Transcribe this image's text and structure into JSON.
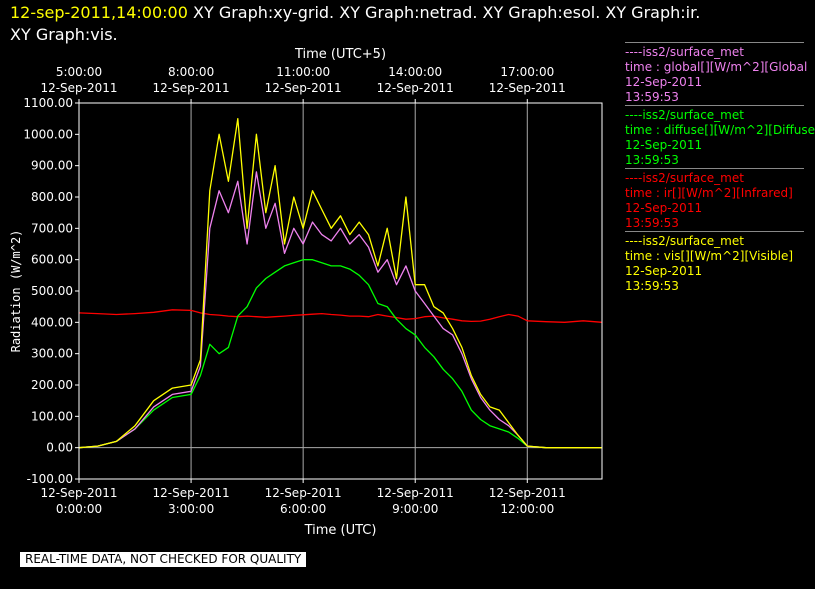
{
  "header": {
    "timestamp": "12-sep-2011,14:00:00",
    "graphs_line1": "XY Graph:xy-grid.  XY Graph:netrad.  XY Graph:esol.  XY Graph:ir.",
    "graphs_line2": "XY Graph:vis."
  },
  "notice": "REAL-TIME DATA, NOT CHECKED FOR QUALITY",
  "legend": [
    {
      "source": "----iss2/surface_met",
      "desc": "time : global[][W/m^2][Global",
      "date": "12-Sep-2011",
      "time": "13:59:53",
      "color": "#ee82ee"
    },
    {
      "source": "----iss2/surface_met",
      "desc": "time : diffuse[][W/m^2][Diffuse",
      "date": "12-Sep-2011",
      "time": "13:59:53",
      "color": "#00ff00"
    },
    {
      "source": "----iss2/surface_met",
      "desc": "time : ir[][W/m^2][Infrared]",
      "date": "12-Sep-2011",
      "time": "13:59:53",
      "color": "#ff0000"
    },
    {
      "source": "----iss2/surface_met",
      "desc": "time : vis[][W/m^2][Visible]",
      "date": "12-Sep-2011",
      "time": "13:59:53",
      "color": "#ffff00"
    }
  ],
  "chart_data": {
    "type": "line",
    "xlabel": "Time (UTC)",
    "x2label": "Time (UTC+5)",
    "ylabel": "Radiation (W/m^2)",
    "xlim": [
      "12-Sep-2011 0:00:00",
      "12-Sep-2011 14:00:00"
    ],
    "ylim": [
      -100,
      1100
    ],
    "grid": true,
    "yticks": [
      "-100.00",
      "0.00",
      "100.00",
      "200.00",
      "300.00",
      "400.00",
      "500.00",
      "600.00",
      "700.00",
      "800.00",
      "900.00",
      "1000.00",
      "1100.00"
    ],
    "xticks_bottom": [
      {
        "date": "12-Sep-2011",
        "time": "0:00:00"
      },
      {
        "date": "12-Sep-2011",
        "time": "3:00:00"
      },
      {
        "date": "12-Sep-2011",
        "time": "6:00:00"
      },
      {
        "date": "12-Sep-2011",
        "time": "9:00:00"
      },
      {
        "date": "12-Sep-2011",
        "time": "12:00:00"
      }
    ],
    "xticks_top": [
      {
        "time": "5:00:00",
        "date": "12-Sep-2011"
      },
      {
        "time": "8:00:00",
        "date": "12-Sep-2011"
      },
      {
        "time": "11:00:00",
        "date": "12-Sep-2011"
      },
      {
        "time": "14:00:00",
        "date": "12-Sep-2011"
      },
      {
        "time": "17:00:00",
        "date": "12-Sep-2011"
      }
    ],
    "x_hours": [
      0,
      0.5,
      1,
      1.5,
      2,
      2.5,
      3,
      3.25,
      3.5,
      3.75,
      4,
      4.25,
      4.5,
      4.75,
      5,
      5.25,
      5.5,
      5.75,
      6,
      6.25,
      6.5,
      6.75,
      7,
      7.25,
      7.5,
      7.75,
      8,
      8.25,
      8.5,
      8.75,
      9,
      9.25,
      9.5,
      9.75,
      10,
      10.25,
      10.5,
      10.75,
      11,
      11.25,
      11.5,
      11.75,
      12,
      12.5,
      13,
      13.5,
      14
    ],
    "series": [
      {
        "name": "global",
        "color": "#ee82ee",
        "values": [
          0,
          5,
          20,
          60,
          130,
          170,
          180,
          260,
          700,
          820,
          750,
          850,
          650,
          880,
          700,
          780,
          620,
          700,
          650,
          720,
          680,
          660,
          700,
          650,
          680,
          640,
          560,
          600,
          520,
          580,
          500,
          460,
          420,
          380,
          360,
          300,
          220,
          160,
          120,
          90,
          70,
          40,
          5,
          0,
          0,
          0,
          0
        ]
      },
      {
        "name": "diffuse",
        "color": "#00ff00",
        "values": [
          0,
          5,
          20,
          60,
          120,
          160,
          170,
          230,
          330,
          300,
          320,
          420,
          450,
          510,
          540,
          560,
          580,
          590,
          600,
          600,
          590,
          580,
          580,
          570,
          550,
          520,
          460,
          450,
          410,
          380,
          360,
          320,
          290,
          250,
          220,
          180,
          120,
          90,
          70,
          60,
          50,
          30,
          5,
          0,
          0,
          0,
          0
        ]
      },
      {
        "name": "ir",
        "color": "#ff0000",
        "values": [
          430,
          428,
          425,
          428,
          432,
          440,
          438,
          430,
          425,
          423,
          420,
          418,
          420,
          418,
          416,
          418,
          420,
          422,
          424,
          426,
          428,
          425,
          423,
          420,
          420,
          418,
          425,
          420,
          415,
          410,
          412,
          418,
          420,
          414,
          410,
          405,
          403,
          404,
          410,
          418,
          425,
          420,
          405,
          402,
          400,
          405,
          400
        ]
      },
      {
        "name": "vis",
        "color": "#ffff00",
        "values": [
          0,
          5,
          20,
          70,
          150,
          190,
          200,
          280,
          820,
          1000,
          850,
          1050,
          700,
          1000,
          750,
          900,
          650,
          800,
          700,
          820,
          760,
          700,
          740,
          680,
          720,
          680,
          580,
          700,
          540,
          800,
          520,
          520,
          450,
          430,
          380,
          320,
          230,
          170,
          130,
          120,
          80,
          40,
          5,
          0,
          0,
          0,
          0
        ]
      }
    ]
  }
}
